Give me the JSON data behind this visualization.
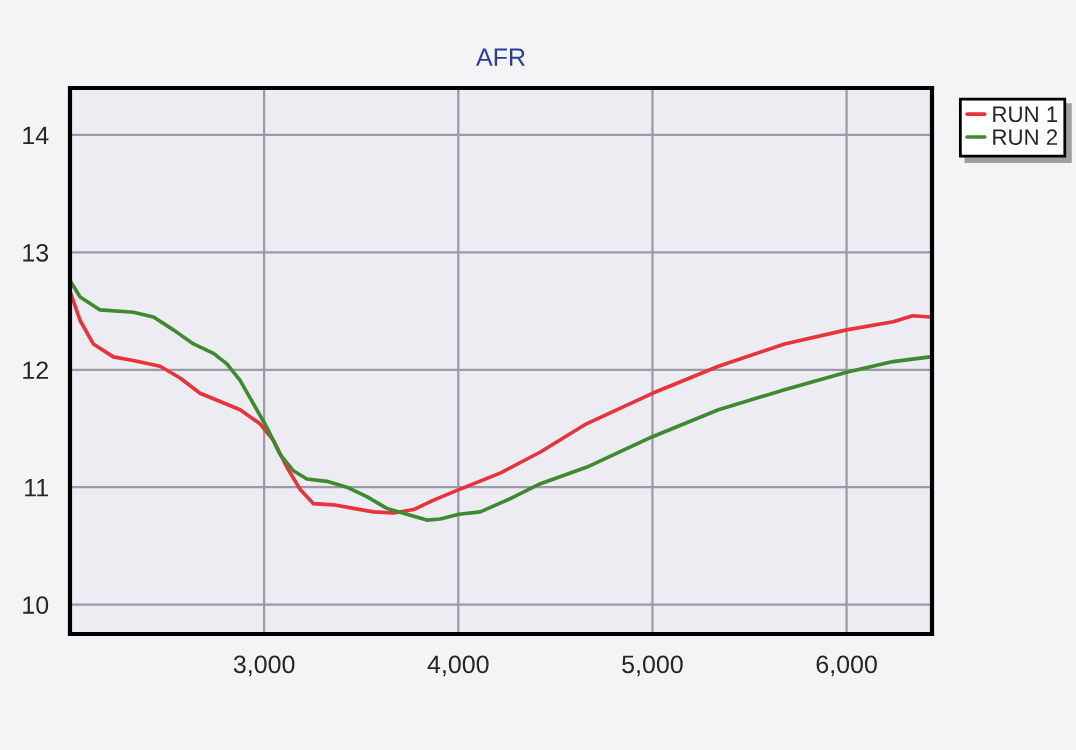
{
  "chart_data": {
    "type": "line",
    "title": "AFR",
    "xlim": [
      2000,
      6440
    ],
    "xticks": [
      {
        "value": 3000,
        "label": "3,000"
      },
      {
        "value": 4000,
        "label": "4,000"
      },
      {
        "value": 5000,
        "label": "5,000"
      },
      {
        "value": 6000,
        "label": "6,000"
      }
    ],
    "ylim": [
      9.75,
      14.4
    ],
    "yticks": [
      10,
      11,
      12,
      13,
      14
    ],
    "grid": true,
    "legend": "top right",
    "marker": "none",
    "line_style": "solid",
    "series": [
      {
        "name": "RUN 1",
        "color": "#e8323c",
        "x": [
          2000,
          2052,
          2120,
          2223,
          2326,
          2464,
          2567,
          2670,
          2773,
          2876,
          2979,
          3048,
          3117,
          3186,
          3254,
          3357,
          3460,
          3564,
          3667,
          3770,
          3873,
          4003,
          4216,
          4423,
          4660,
          5000,
          5340,
          5680,
          6000,
          6240,
          6340,
          6430
        ],
        "values": [
          12.67,
          12.42,
          12.22,
          12.11,
          12.08,
          12.03,
          11.93,
          11.8,
          11.73,
          11.66,
          11.54,
          11.4,
          11.17,
          10.98,
          10.86,
          10.85,
          10.82,
          10.79,
          10.78,
          10.81,
          10.89,
          10.98,
          11.12,
          11.3,
          11.54,
          11.8,
          12.03,
          12.22,
          12.34,
          12.41,
          12.46,
          12.45
        ]
      },
      {
        "name": "RUN 2",
        "color": "#3e8a2e",
        "x": [
          2000,
          2052,
          2155,
          2326,
          2430,
          2533,
          2636,
          2739,
          2808,
          2876,
          2945,
          3014,
          3082,
          3151,
          3220,
          3323,
          3426,
          3529,
          3632,
          3735,
          3838,
          3907,
          4003,
          4113,
          4251,
          4423,
          4660,
          5000,
          5340,
          5680,
          6000,
          6240,
          6430
        ],
        "values": [
          12.76,
          12.62,
          12.51,
          12.49,
          12.45,
          12.34,
          12.22,
          12.14,
          12.05,
          11.91,
          11.71,
          11.51,
          11.28,
          11.14,
          11.07,
          11.05,
          11.0,
          10.92,
          10.82,
          10.77,
          10.72,
          10.73,
          10.77,
          10.79,
          10.89,
          11.03,
          11.17,
          11.43,
          11.66,
          11.83,
          11.98,
          12.07,
          12.11
        ]
      }
    ]
  }
}
